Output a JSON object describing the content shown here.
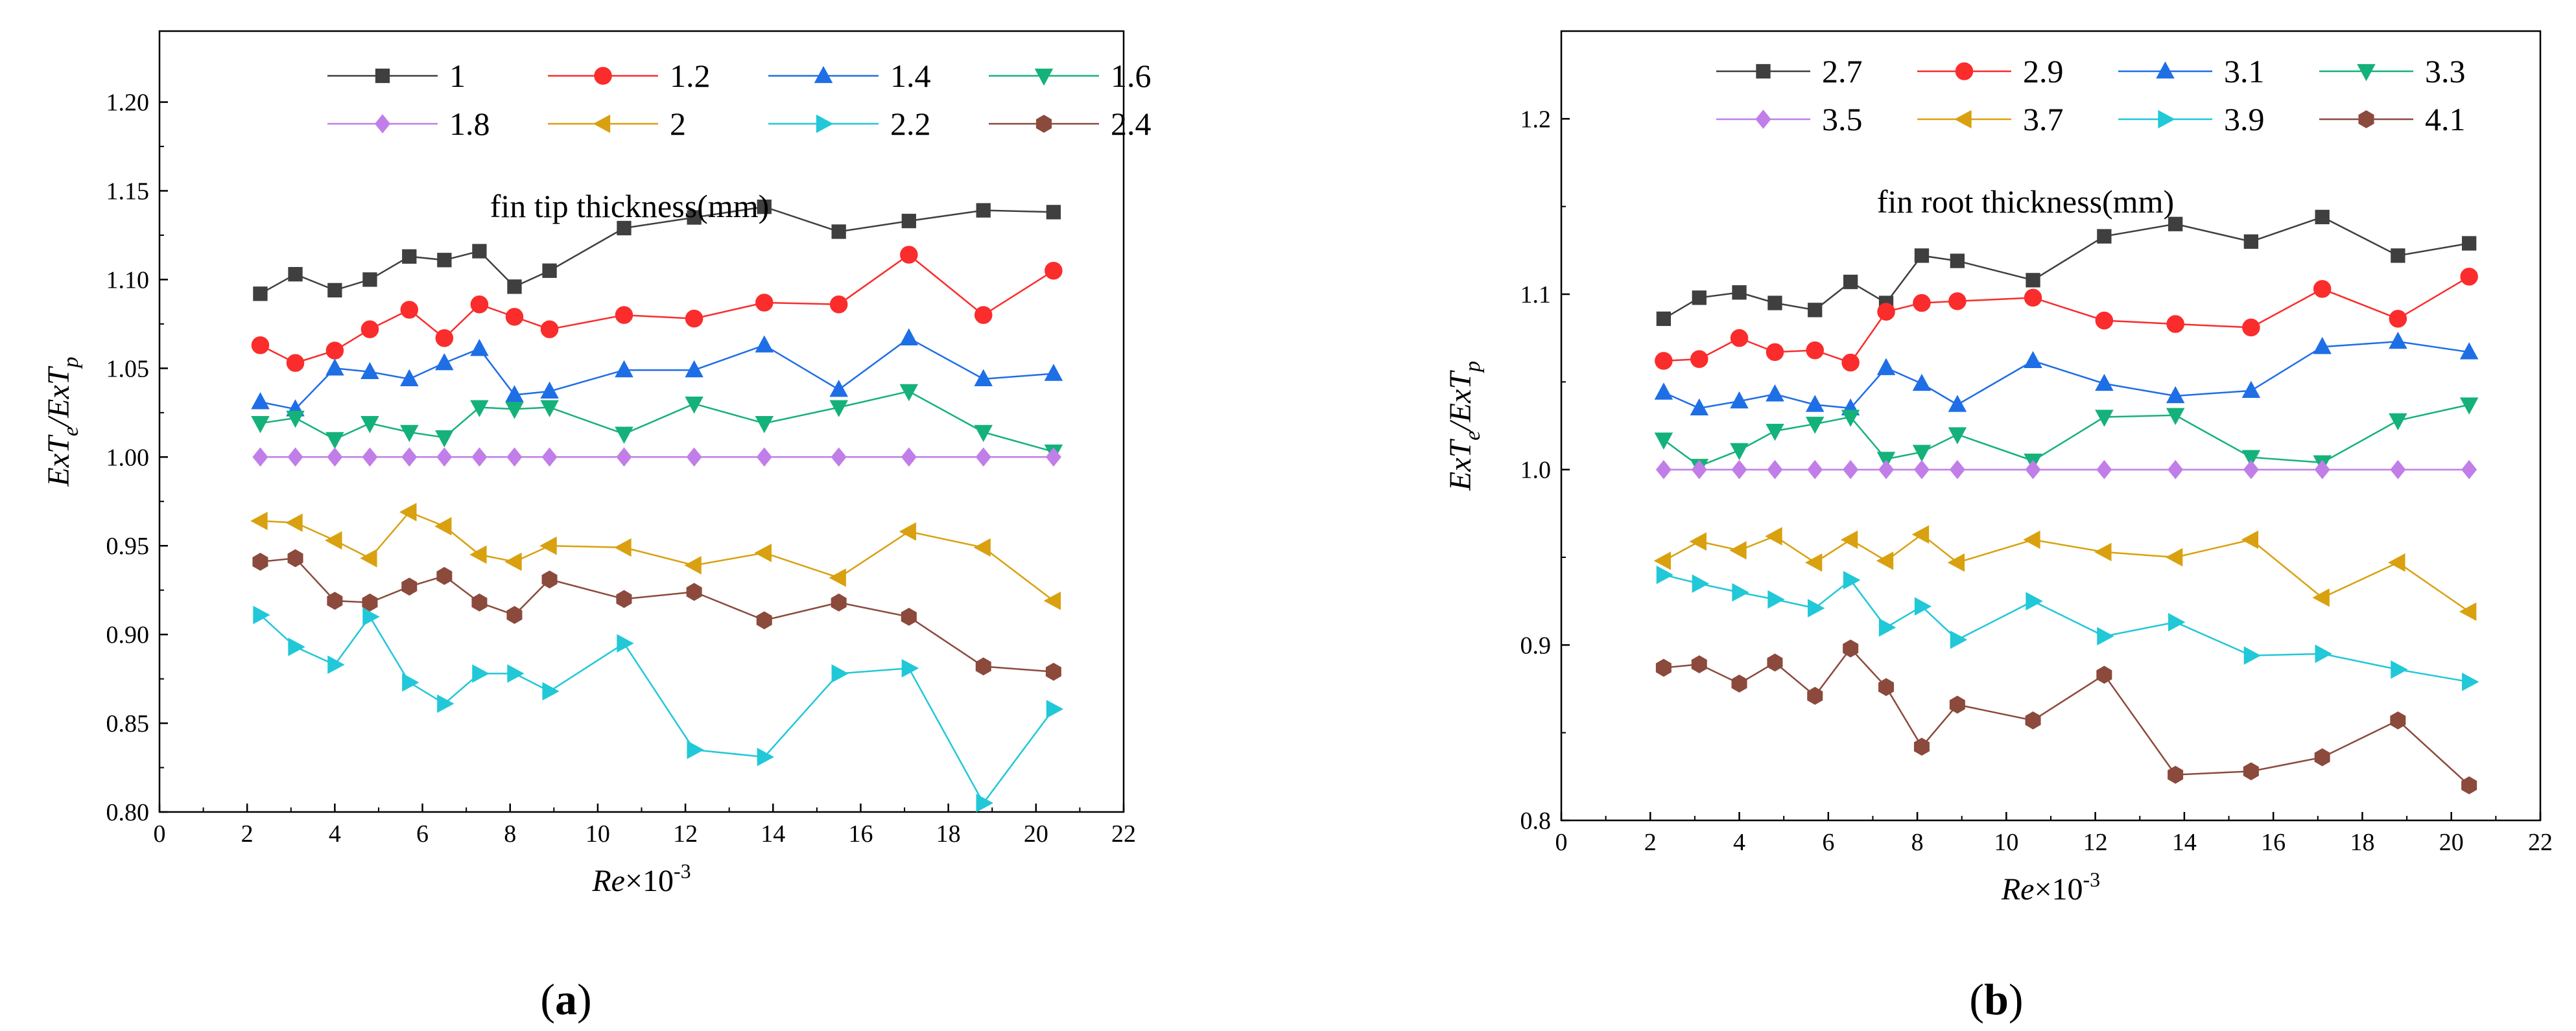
{
  "chart_data": [
    {
      "type": "line",
      "panel_label": "(a)",
      "panel_letter": "a",
      "legend_title": "fin tip thickness(mm)",
      "ylabel_parts": [
        "ExT",
        "e",
        "/ExT",
        "p"
      ],
      "xlabel_parts": [
        "Re",
        "×10",
        "-3"
      ],
      "xlim": [
        0,
        22
      ],
      "ylim": [
        0.8,
        1.24
      ],
      "xticks": [
        0,
        2,
        4,
        6,
        8,
        10,
        12,
        14,
        16,
        18,
        20,
        22
      ],
      "yticks": [
        0.8,
        0.85,
        0.9,
        0.95,
        1.0,
        1.05,
        1.1,
        1.15,
        1.2
      ],
      "ytick_labels": [
        "0.80",
        "0.85",
        "0.90",
        "0.95",
        "1.00",
        "1.05",
        "1.10",
        "1.15",
        "1.20"
      ],
      "x": [
        2.3,
        3.1,
        4.0,
        4.8,
        5.7,
        6.5,
        7.3,
        8.1,
        8.9,
        10.6,
        12.2,
        13.8,
        15.5,
        17.1,
        18.8,
        20.4
      ],
      "series": [
        {
          "name": "1",
          "color": "#3f3f3f",
          "marker": "square",
          "values": [
            1.092,
            1.103,
            1.094,
            1.1,
            1.113,
            1.111,
            1.116,
            1.096,
            1.105,
            1.129,
            1.135,
            1.141,
            1.127,
            1.133,
            1.139,
            1.138
          ]
        },
        {
          "name": "1.2",
          "color": "#fa2c2c",
          "marker": "circle",
          "values": [
            1.063,
            1.053,
            1.06,
            1.072,
            1.083,
            1.067,
            1.086,
            1.079,
            1.072,
            1.08,
            1.078,
            1.087,
            1.086,
            1.114,
            1.08,
            1.105
          ]
        },
        {
          "name": "1.4",
          "color": "#1e6ee6",
          "marker": "triangle-up",
          "values": [
            1.031,
            1.027,
            1.05,
            1.048,
            1.044,
            1.053,
            1.061,
            1.035,
            1.037,
            1.049,
            1.049,
            1.063,
            1.038,
            1.067,
            1.044,
            1.047
          ]
        },
        {
          "name": "1.6",
          "color": "#14b27a",
          "marker": "triangle-down",
          "values": [
            1.019,
            1.022,
            1.01,
            1.019,
            1.014,
            1.011,
            1.028,
            1.027,
            1.028,
            1.013,
            1.03,
            1.019,
            1.028,
            1.037,
            1.014,
            1.003
          ]
        },
        {
          "name": "1.8",
          "color": "#c27ee8",
          "marker": "diamond",
          "values": [
            1.0,
            1.0,
            1.0,
            1.0,
            1.0,
            1.0,
            1.0,
            1.0,
            1.0,
            1.0,
            1.0,
            1.0,
            1.0,
            1.0,
            1.0,
            1.0
          ]
        },
        {
          "name": "2",
          "color": "#d9a110",
          "marker": "triangle-left",
          "values": [
            0.964,
            0.963,
            0.953,
            0.943,
            0.969,
            0.961,
            0.945,
            0.941,
            0.95,
            0.949,
            0.939,
            0.946,
            0.932,
            0.958,
            0.949,
            0.919
          ]
        },
        {
          "name": "2.2",
          "color": "#21c8d8",
          "marker": "triangle-right",
          "values": [
            0.911,
            0.893,
            0.883,
            0.91,
            0.873,
            0.861,
            0.878,
            0.878,
            0.868,
            0.895,
            0.835,
            0.831,
            0.878,
            0.881,
            0.805,
            0.858
          ]
        },
        {
          "name": "2.4",
          "color": "#8b4a3c",
          "marker": "hexagon",
          "values": [
            0.941,
            0.943,
            0.919,
            0.918,
            0.927,
            0.933,
            0.918,
            0.911,
            0.931,
            0.92,
            0.924,
            0.908,
            0.918,
            0.91,
            0.882,
            0.879
          ]
        }
      ]
    },
    {
      "type": "line",
      "panel_label": "(b)",
      "panel_letter": "b",
      "legend_title": "fin root thickness(mm)",
      "ylabel_parts": [
        "ExT",
        "e",
        "/ExT",
        "p"
      ],
      "xlabel_parts": [
        "Re",
        "×10",
        "-3"
      ],
      "xlim": [
        0,
        22
      ],
      "ylim": [
        0.8,
        1.25
      ],
      "xticks": [
        0,
        2,
        4,
        6,
        8,
        10,
        12,
        14,
        16,
        18,
        20,
        22
      ],
      "yticks": [
        0.8,
        0.9,
        1.0,
        1.1,
        1.2
      ],
      "ytick_labels": [
        "0.8",
        "0.9",
        "1.0",
        "1.1",
        "1.2"
      ],
      "x": [
        2.3,
        3.1,
        4.0,
        4.8,
        5.7,
        6.5,
        7.3,
        8.1,
        8.9,
        10.6,
        12.2,
        13.8,
        15.5,
        17.1,
        18.8,
        20.4
      ],
      "series": [
        {
          "name": "2.7",
          "color": "#3f3f3f",
          "marker": "square",
          "values": [
            1.086,
            1.098,
            1.101,
            1.095,
            1.091,
            1.107,
            1.095,
            1.122,
            1.119,
            1.108,
            1.133,
            1.14,
            1.13,
            1.144,
            1.122,
            1.129
          ]
        },
        {
          "name": "2.9",
          "color": "#fa2c2c",
          "marker": "circle",
          "values": [
            1.062,
            1.063,
            1.075,
            1.067,
            1.068,
            1.061,
            1.09,
            1.095,
            1.096,
            1.098,
            1.085,
            1.083,
            1.081,
            1.103,
            1.086,
            1.11
          ]
        },
        {
          "name": "3.1",
          "color": "#1e6ee6",
          "marker": "triangle-up",
          "values": [
            1.044,
            1.035,
            1.039,
            1.043,
            1.037,
            1.035,
            1.058,
            1.049,
            1.037,
            1.062,
            1.049,
            1.042,
            1.045,
            1.07,
            1.073,
            1.067
          ]
        },
        {
          "name": "3.3",
          "color": "#14b27a",
          "marker": "triangle-down",
          "values": [
            1.017,
            1.002,
            1.011,
            1.022,
            1.026,
            1.03,
            1.006,
            1.01,
            1.02,
            1.005,
            1.03,
            1.031,
            1.007,
            1.004,
            1.028,
            1.037
          ]
        },
        {
          "name": "3.5",
          "color": "#c27ee8",
          "marker": "diamond",
          "values": [
            1.0,
            1.0,
            1.0,
            1.0,
            1.0,
            1.0,
            1.0,
            1.0,
            1.0,
            1.0,
            1.0,
            1.0,
            1.0,
            1.0,
            1.0,
            1.0
          ]
        },
        {
          "name": "3.7",
          "color": "#d9a110",
          "marker": "triangle-left",
          "values": [
            0.948,
            0.959,
            0.954,
            0.962,
            0.947,
            0.96,
            0.948,
            0.963,
            0.947,
            0.96,
            0.953,
            0.95,
            0.96,
            0.927,
            0.947,
            0.919
          ]
        },
        {
          "name": "3.9",
          "color": "#21c8d8",
          "marker": "triangle-right",
          "values": [
            0.94,
            0.935,
            0.93,
            0.926,
            0.921,
            0.937,
            0.91,
            0.922,
            0.903,
            0.925,
            0.905,
            0.913,
            0.894,
            0.895,
            0.886,
            0.879
          ]
        },
        {
          "name": "4.1",
          "color": "#8b4a3c",
          "marker": "hexagon",
          "values": [
            0.887,
            0.889,
            0.878,
            0.89,
            0.871,
            0.898,
            0.876,
            0.842,
            0.866,
            0.857,
            0.883,
            0.826,
            0.828,
            0.836,
            0.857,
            0.82
          ]
        }
      ]
    }
  ]
}
